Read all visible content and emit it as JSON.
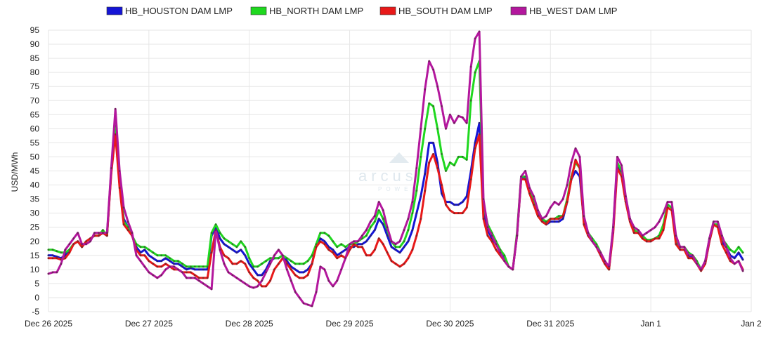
{
  "chart_data": {
    "type": "line",
    "ylabel": "USD/MWh",
    "ylim": [
      -5,
      95
    ],
    "yticks": [
      -5,
      0,
      5,
      10,
      15,
      20,
      25,
      30,
      35,
      40,
      45,
      50,
      55,
      60,
      65,
      70,
      75,
      80,
      85,
      90,
      95
    ],
    "xlim_hours": [
      0,
      168
    ],
    "xticks": [
      {
        "label": "Dec 26 2025",
        "hour": 0
      },
      {
        "label": "Dec 27 2025",
        "hour": 24
      },
      {
        "label": "Dec 28 2025",
        "hour": 48
      },
      {
        "label": "Dec 29 2025",
        "hour": 72
      },
      {
        "label": "Dec 30 2025",
        "hour": 96
      },
      {
        "label": "Dec 31 2025",
        "hour": 120
      },
      {
        "label": "Jan 1",
        "hour": 144
      },
      {
        "label": "Jan 2",
        "hour": 168
      }
    ],
    "grid": true,
    "legend_position": "top",
    "series": [
      {
        "name": "HB_HOUSTON DAM LMP",
        "color": "#1515d6",
        "values": [
          15,
          15,
          14.5,
          14,
          15,
          17,
          19,
          20,
          18,
          20,
          21,
          22,
          22,
          23,
          22,
          45,
          60,
          40,
          28,
          25,
          22,
          18,
          16,
          17,
          15,
          14,
          13,
          13,
          14,
          13,
          12,
          12,
          11,
          10,
          10.5,
          10,
          10,
          10,
          10,
          22,
          25,
          21,
          19,
          18,
          17,
          16,
          17,
          15,
          12,
          10,
          8,
          8,
          10,
          13,
          14,
          14,
          15,
          13,
          11,
          10,
          9,
          9,
          10,
          12,
          19,
          21,
          20,
          18,
          17,
          15,
          16,
          17,
          18,
          18,
          19,
          19,
          20,
          22,
          24,
          28,
          26,
          22,
          18,
          17,
          16,
          18,
          20,
          24,
          30,
          36,
          44,
          55,
          55,
          48,
          37,
          34,
          34,
          33,
          33,
          34,
          36,
          45,
          55,
          62,
          30,
          24,
          21,
          19,
          16,
          14,
          11,
          10,
          22,
          42,
          43,
          38,
          34,
          30,
          28,
          26,
          27,
          27,
          27,
          28,
          34,
          42,
          45,
          43,
          27,
          22,
          20,
          18,
          15,
          12,
          10,
          24,
          47,
          44,
          34,
          28,
          24,
          23,
          22,
          20,
          20,
          21,
          22,
          25,
          33,
          32,
          20,
          17,
          17,
          15,
          14,
          12,
          10,
          12,
          20,
          26,
          26,
          20,
          18,
          15,
          14,
          16,
          13.5
        ],
        "last_value": 13.5
      },
      {
        "name": "HB_NORTH DAM LMP",
        "color": "#1fd81f",
        "values": [
          17,
          17,
          16.5,
          16,
          16,
          17,
          19,
          20,
          18,
          20,
          21,
          22,
          22,
          24,
          22,
          45,
          61,
          42,
          27,
          25,
          22,
          19,
          18,
          18,
          17,
          16,
          15,
          15,
          15,
          14,
          13,
          13,
          12,
          11,
          11,
          11,
          11,
          11,
          11,
          23,
          26,
          23,
          21,
          20,
          19,
          18,
          20,
          18,
          14,
          11,
          11,
          12,
          13,
          14,
          14,
          14,
          15,
          14,
          13,
          12,
          12,
          12,
          13,
          15,
          19,
          23,
          23,
          22,
          20,
          18,
          19,
          18,
          19,
          19,
          20,
          21,
          22,
          25,
          27,
          31,
          28,
          24,
          20,
          18,
          18,
          20,
          24,
          30,
          38,
          50,
          60,
          69,
          68,
          60,
          51,
          45,
          48,
          47,
          50,
          50,
          49,
          70,
          80,
          84,
          33,
          26,
          23,
          20,
          17,
          15,
          11,
          10,
          23,
          43,
          43,
          39,
          35,
          31,
          28,
          27,
          28,
          28,
          29,
          29,
          35,
          43,
          48,
          46,
          27,
          23,
          21,
          19,
          16,
          12,
          10,
          25,
          48,
          45,
          34,
          28,
          24,
          23,
          22,
          20.5,
          20.5,
          21,
          22,
          26,
          33,
          32,
          21,
          18,
          18,
          16,
          15,
          13,
          10,
          12,
          21,
          26,
          26,
          21,
          19,
          17,
          16,
          18,
          16
        ],
        "last_value": 16
      },
      {
        "name": "HB_SOUTH DAM LMP",
        "color": "#e81919",
        "values": [
          14,
          14,
          14,
          13.5,
          14,
          16,
          19,
          20,
          18,
          20,
          21,
          22,
          22,
          23,
          22,
          44,
          58,
          39,
          26,
          24,
          22,
          17,
          15,
          15,
          13,
          12,
          11,
          11,
          12,
          11,
          10,
          10,
          9,
          9,
          9,
          8,
          7,
          7,
          7,
          16,
          24,
          18,
          15,
          14,
          12,
          12,
          13,
          12,
          9,
          7,
          6,
          4,
          4,
          6,
          10,
          12,
          14,
          12,
          10,
          8,
          7,
          7,
          8,
          12,
          18,
          20,
          19,
          17,
          16,
          14,
          15,
          14,
          17,
          19,
          18,
          18,
          15,
          15,
          17,
          21,
          19,
          16,
          13,
          12,
          11,
          12,
          14,
          17,
          22,
          28,
          38,
          48,
          51,
          46,
          40,
          33,
          31,
          30,
          30,
          30,
          32,
          42,
          53,
          58,
          28,
          22,
          20,
          17,
          15,
          13,
          11,
          10,
          22,
          42,
          42,
          37,
          33,
          29,
          27,
          26,
          28,
          28,
          28,
          29,
          34,
          42,
          49,
          46,
          26,
          22,
          20,
          18,
          15,
          12,
          10,
          23,
          46,
          43,
          34,
          27,
          23,
          23,
          21,
          20,
          20,
          21,
          21,
          24,
          32,
          31,
          19,
          17,
          17,
          14,
          14,
          12,
          9.5,
          12,
          20,
          26,
          25,
          19,
          16,
          13,
          12,
          13,
          10
        ],
        "last_value": 10
      },
      {
        "name": "HB_WEST DAM LMP",
        "color": "#b3179d",
        "values": [
          8.5,
          9,
          9,
          12,
          17,
          19,
          21,
          23,
          19,
          19,
          20,
          23,
          23,
          23,
          23,
          46,
          67,
          45,
          32,
          27,
          23,
          15,
          13,
          11,
          9,
          8,
          7,
          8,
          10,
          11,
          11,
          10,
          9,
          7,
          7,
          7,
          6,
          5,
          4,
          3,
          24,
          17,
          12,
          9,
          8,
          7,
          6,
          5,
          4,
          3.5,
          4,
          6,
          9,
          12,
          15,
          17,
          15,
          10,
          6,
          2,
          0,
          -2,
          -2.5,
          -3,
          2,
          11,
          10,
          6,
          4,
          6,
          10,
          14,
          19,
          20,
          20,
          22,
          24,
          27,
          29,
          34,
          31,
          25,
          20,
          19,
          20,
          24,
          28,
          34,
          46,
          60,
          74,
          84,
          81,
          75,
          68,
          60,
          65,
          62,
          64.5,
          64,
          62,
          82,
          92,
          94.5,
          35,
          25,
          22,
          19,
          16,
          13,
          11,
          10,
          22,
          43,
          45,
          39,
          36,
          31,
          28,
          29,
          32,
          34,
          33,
          35,
          40,
          48,
          53,
          50,
          29,
          23,
          20,
          18,
          16,
          13,
          11,
          25,
          50,
          47,
          36,
          28,
          25,
          24,
          22,
          23,
          24,
          25,
          27,
          30,
          34,
          34,
          22,
          18,
          18,
          15,
          15,
          12,
          10,
          13,
          21,
          27,
          27,
          22,
          18,
          14,
          12,
          13,
          9.5
        ],
        "last_value": 9.5
      }
    ]
  },
  "watermark": {
    "text": "arcus",
    "subtext": "POWER"
  }
}
